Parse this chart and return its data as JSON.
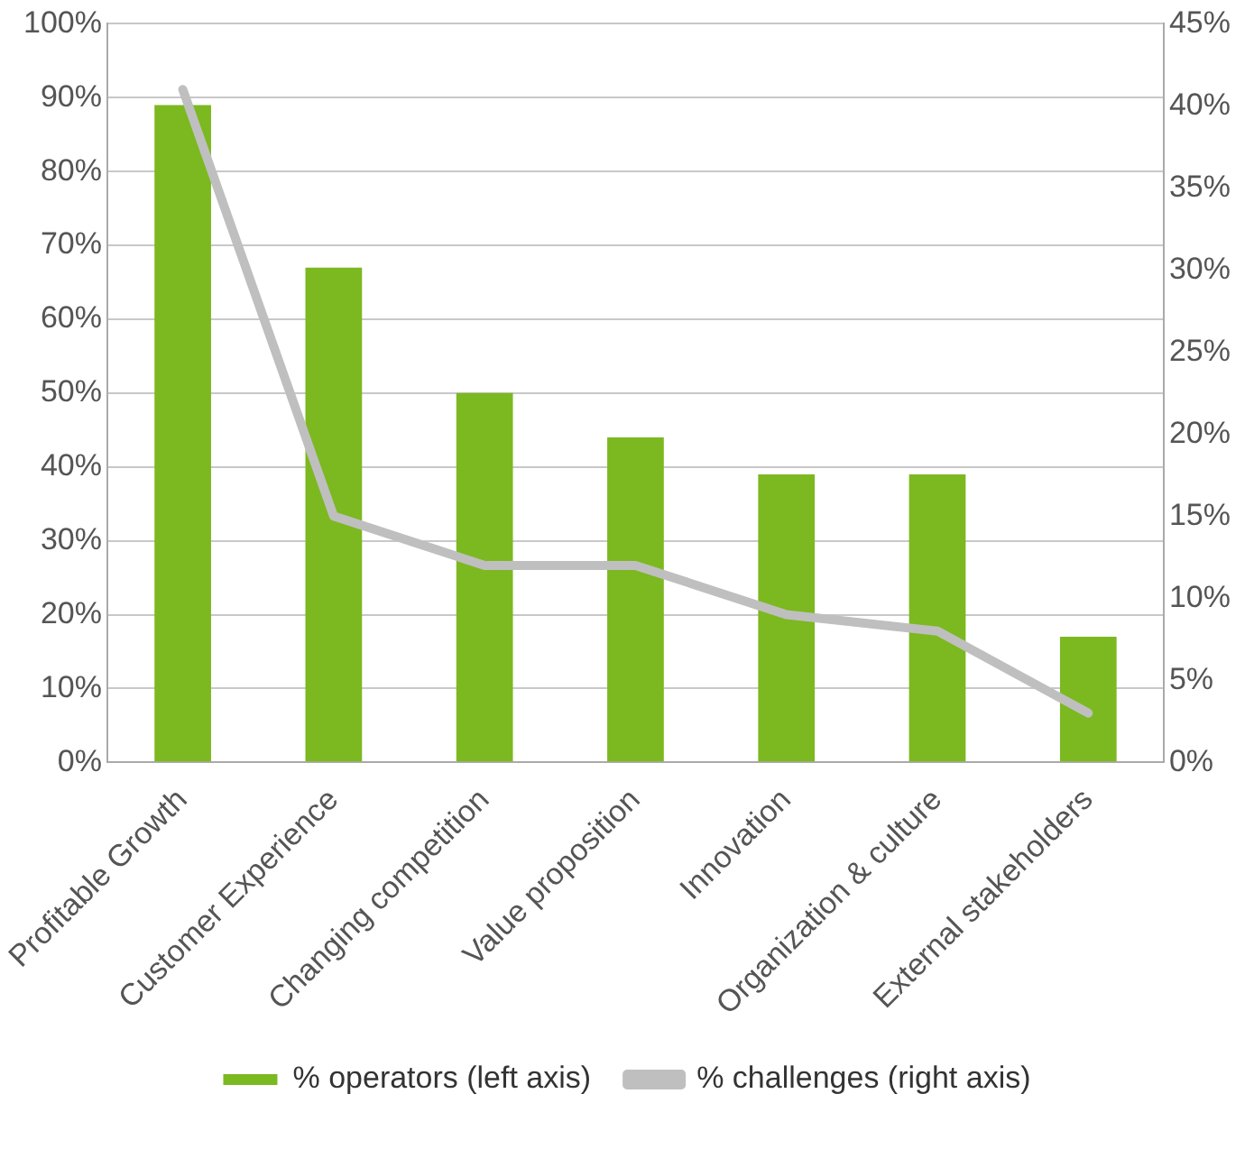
{
  "chart_data": {
    "type": "bar",
    "categories": [
      "Profitable Growth",
      "Customer Experience",
      "Changing competition",
      "Value proposition",
      "Innovation",
      "Organization & culture",
      "External stakeholders"
    ],
    "series": [
      {
        "name": "% operators (left axis)",
        "color": "#7cb820",
        "values": [
          89,
          67,
          50,
          44,
          39,
          39,
          17
        ]
      },
      {
        "name": "% challenges (right axis)",
        "type": "line",
        "axis": "y2",
        "color": "#bfbfbf",
        "values": [
          41,
          15,
          12,
          12,
          9,
          8,
          3
        ]
      }
    ],
    "ylim": [
      0,
      100
    ],
    "yticks": [
      {
        "value": 0,
        "label": "0%"
      },
      {
        "value": 10,
        "label": "10%"
      },
      {
        "value": 20,
        "label": "20%"
      },
      {
        "value": 30,
        "label": "30%"
      },
      {
        "value": 40,
        "label": "40%"
      },
      {
        "value": 50,
        "label": "50%"
      },
      {
        "value": 60,
        "label": "60%"
      },
      {
        "value": 70,
        "label": "70%"
      },
      {
        "value": 80,
        "label": "80%"
      },
      {
        "value": 90,
        "label": "90%"
      },
      {
        "value": 100,
        "label": "100%"
      }
    ],
    "y2lim": [
      0,
      45
    ],
    "y2ticks": [
      {
        "value": 0,
        "label": "0%"
      },
      {
        "value": 5,
        "label": "5%"
      },
      {
        "value": 10,
        "label": "10%"
      },
      {
        "value": 15,
        "label": "15%"
      },
      {
        "value": 20,
        "label": "20%"
      },
      {
        "value": 25,
        "label": "25%"
      },
      {
        "value": 30,
        "label": "30%"
      },
      {
        "value": 35,
        "label": "35%"
      },
      {
        "value": 40,
        "label": "40%"
      },
      {
        "value": 45,
        "label": "45%"
      }
    ],
    "grid": "y",
    "legend": "bottom",
    "marker": "none",
    "line_style": "solid"
  }
}
